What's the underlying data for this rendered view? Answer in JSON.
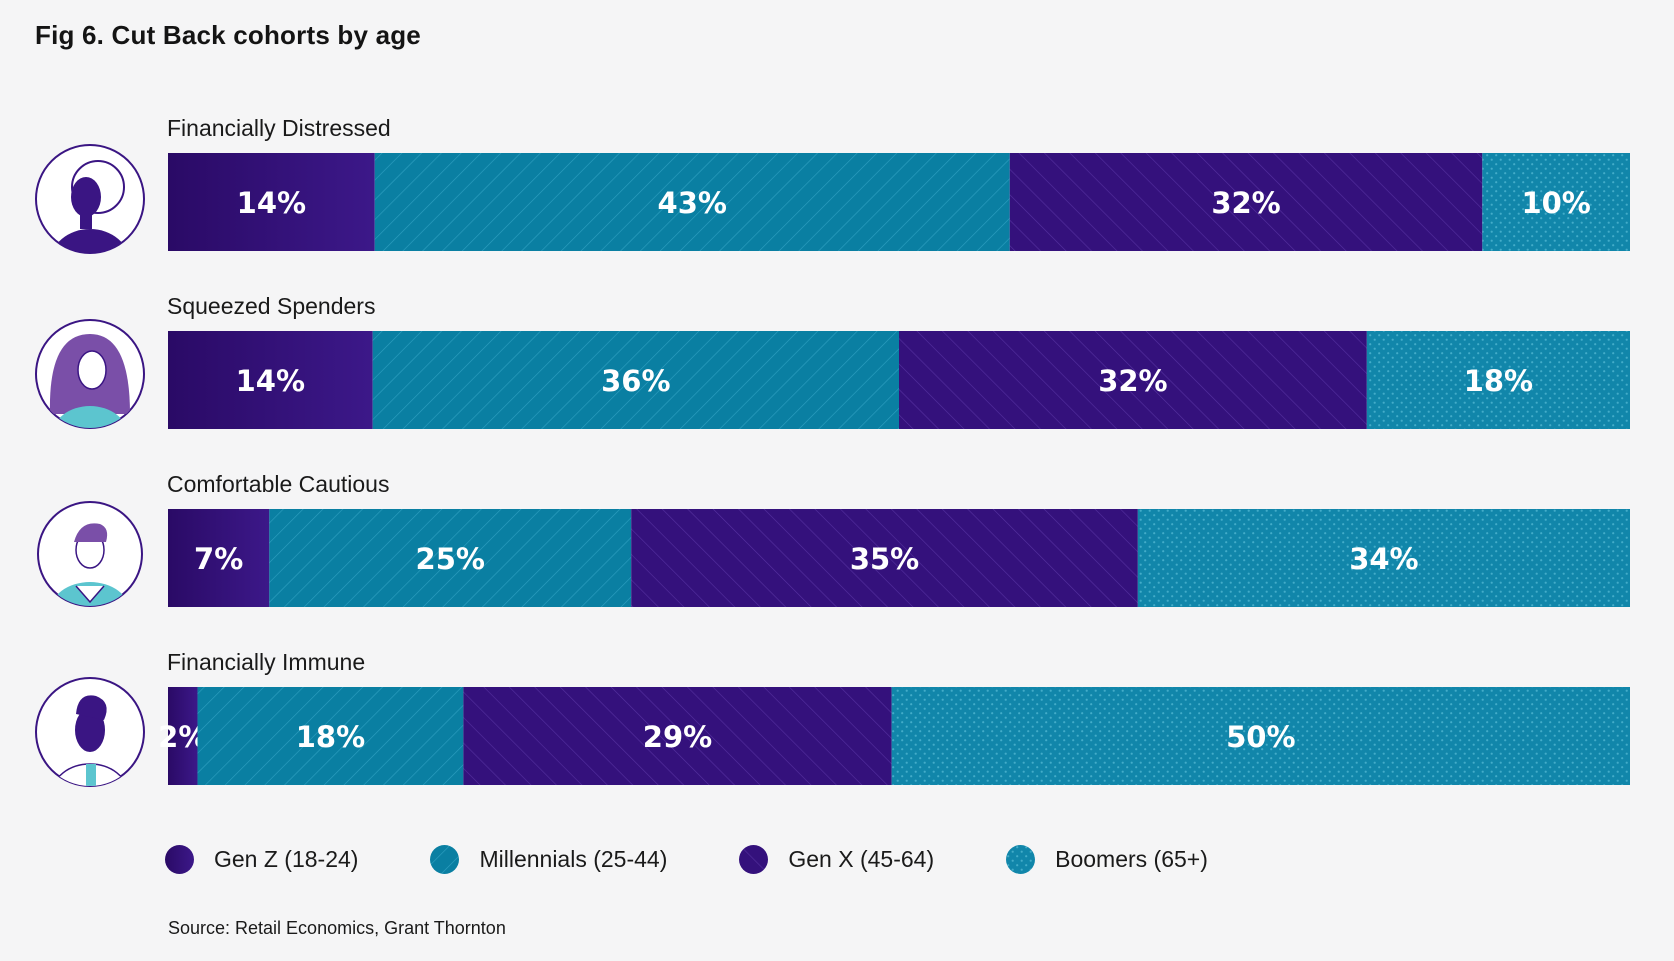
{
  "title": "Fig 6. Cut Back cohorts by age",
  "source": "Source: Retail Economics, Grant Thornton",
  "colors": {
    "gen_z": "#2e0f6e",
    "millennials": "#0a7fa2",
    "gen_x": "#3a1583",
    "boomers": "#1186aa",
    "background": "#f5f5f6"
  },
  "legend": [
    {
      "label": "Gen Z (18-24)",
      "pattern": "gradient-dark"
    },
    {
      "label": "Millennials (25-44)",
      "pattern": "diagonal-hatch"
    },
    {
      "label": "Gen X (45-64)",
      "pattern": "diagonal-hatch-dark"
    },
    {
      "label": "Boomers (65+)",
      "pattern": "dots"
    }
  ],
  "icons": [
    "woman-curly-hair-icon",
    "woman-long-hair-icon",
    "man-collar-icon",
    "man-beard-icon"
  ],
  "chart_data": {
    "type": "bar",
    "orientation": "horizontal-stacked-100",
    "title": "Fig 6. Cut Back cohorts by age",
    "categories": [
      "Financially Distressed",
      "Squeezed Spenders",
      "Comfortable Cautious",
      "Financially Immune"
    ],
    "series": [
      {
        "name": "Gen Z (18-24)",
        "values": [
          14,
          14,
          7,
          2
        ],
        "labels": [
          "14%",
          "14%",
          "7%",
          "2%"
        ]
      },
      {
        "name": "Millennials (25-44)",
        "values": [
          43,
          36,
          25,
          18
        ],
        "labels": [
          "43%",
          "36%",
          "25%",
          "18%"
        ]
      },
      {
        "name": "Gen X (45-64)",
        "values": [
          32,
          32,
          35,
          29
        ],
        "labels": [
          "32%",
          "32%",
          "35%",
          "29%"
        ]
      },
      {
        "name": "Boomers (65+)",
        "values": [
          10,
          18,
          34,
          50
        ],
        "labels": [
          "10%",
          "18%",
          "34%",
          "50%"
        ]
      }
    ],
    "xlim": [
      0,
      100
    ],
    "unit": "%",
    "legend_position": "bottom",
    "grid": false
  }
}
